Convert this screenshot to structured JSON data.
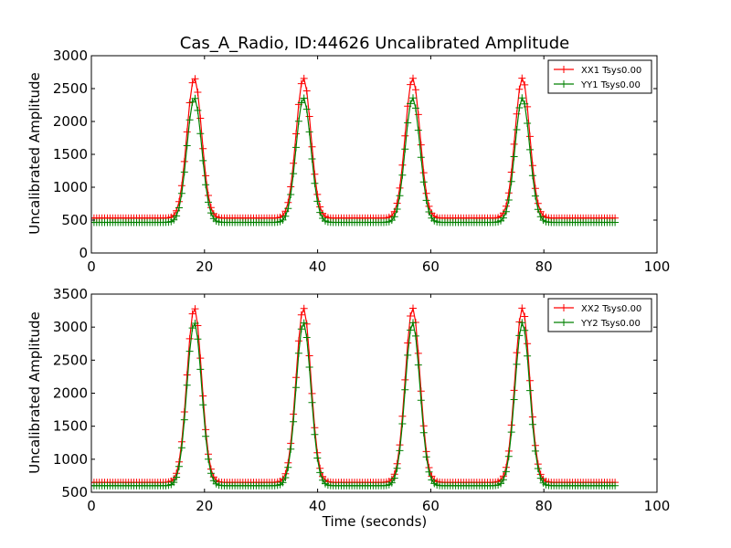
{
  "chart_data": [
    {
      "type": "line",
      "title": "Cas_A_Radio, ID:44626 Uncalibrated Amplitude",
      "xlabel": "",
      "ylabel": "Uncalibrated Amplitude",
      "xlim": [
        0,
        100
      ],
      "ylim": [
        0,
        3000
      ],
      "xticks": [
        "0",
        "20",
        "40",
        "60",
        "80",
        "100"
      ],
      "yticks": [
        "0",
        "500",
        "1000",
        "1500",
        "2000",
        "2500",
        "3000"
      ],
      "grid": false,
      "legend_position": "top-right",
      "x_range": [
        0,
        93
      ],
      "peaks": [
        18.2,
        37.5,
        56.8,
        76.2
      ],
      "peak_width": 1.3,
      "series": [
        {
          "name": "XX1 Tsys0.00",
          "color": "#ff0000",
          "baseline": 530,
          "peak": 2660
        },
        {
          "name": "YY1 Tsys0.00",
          "color": "#008000",
          "baseline": 465,
          "peak": 2360
        }
      ]
    },
    {
      "type": "line",
      "title": "",
      "xlabel": "Time (seconds)",
      "ylabel": "Uncalibrated Amplitude",
      "xlim": [
        0,
        100
      ],
      "ylim": [
        500,
        3500
      ],
      "xticks": [
        "0",
        "20",
        "40",
        "60",
        "80",
        "100"
      ],
      "yticks": [
        "500",
        "1000",
        "1500",
        "2000",
        "2500",
        "3000",
        "3500"
      ],
      "grid": false,
      "legend_position": "top-right",
      "x_range": [
        0,
        93
      ],
      "peaks": [
        18.2,
        37.5,
        56.8,
        76.2
      ],
      "peak_width": 1.3,
      "series": [
        {
          "name": "XX2 Tsys0.00",
          "color": "#ff0000",
          "baseline": 650,
          "peak": 3290
        },
        {
          "name": "YY2 Tsys0.00",
          "color": "#008000",
          "baseline": 600,
          "peak": 3070
        }
      ]
    }
  ]
}
